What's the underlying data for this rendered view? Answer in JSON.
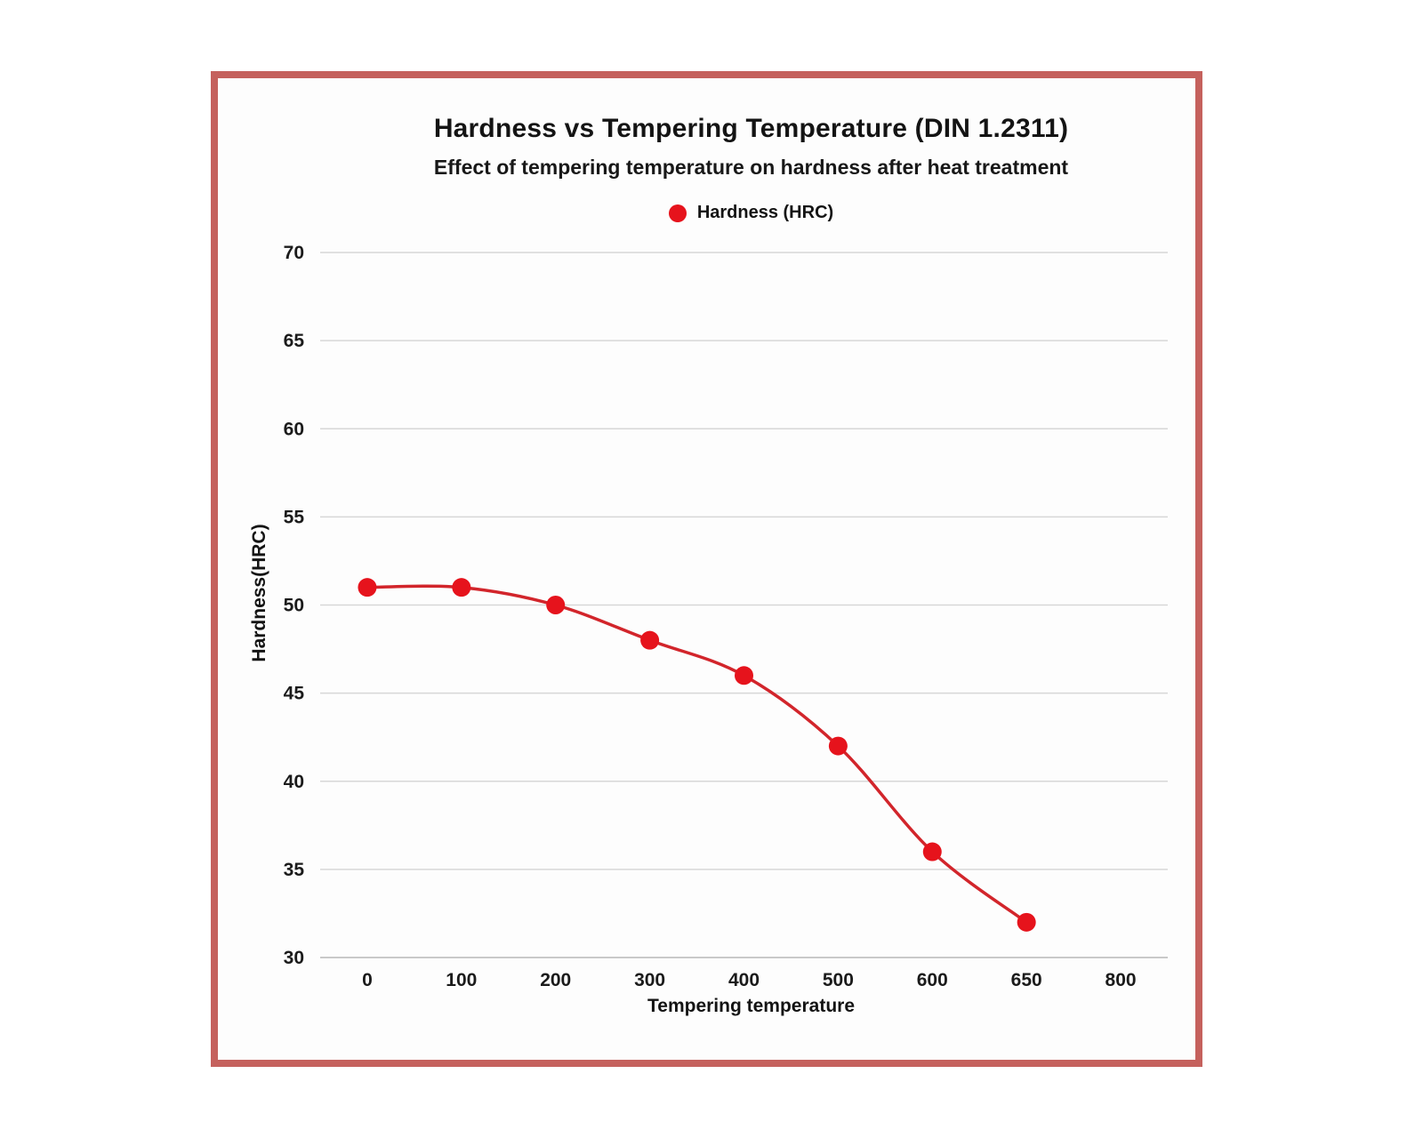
{
  "style": {
    "frame_border_color": "#c5615d",
    "frame_background": "#fdfdfd",
    "gridline_color": "#d7d7d7",
    "axis_line_color": "#c9c9c9",
    "text_color": "#141414"
  },
  "chart": {
    "title": "Hardness vs Tempering Temperature (DIN 1.2311)",
    "subtitle": "Effect of tempering temperature on hardness after heat treatment",
    "legend_label": "Hardness (HRC)",
    "legend_marker": "red-circle"
  },
  "chart_data": {
    "type": "line",
    "title": "Hardness vs Tempering Temperature (DIN 1.2311)",
    "subtitle": "Effect of tempering temperature on hardness after heat treatment",
    "xlabel": "Tempering temperature",
    "ylabel": "Hardness(HRC)",
    "categories": [
      "0",
      "100",
      "200",
      "300",
      "400",
      "500",
      "600",
      "650",
      "800"
    ],
    "series": [
      {
        "name": "Hardness (HRC)",
        "values": [
          51,
          51,
          50,
          48,
          46,
          42,
          36,
          32,
          null
        ],
        "line_color": "#d2252b",
        "marker_color": "#e6131c",
        "marker": "circle"
      }
    ],
    "ylim": [
      30,
      70
    ],
    "y_ticks": [
      30,
      35,
      40,
      45,
      50,
      55,
      60,
      65,
      70
    ],
    "grid": "horizontal",
    "legend_position": "top-center"
  }
}
